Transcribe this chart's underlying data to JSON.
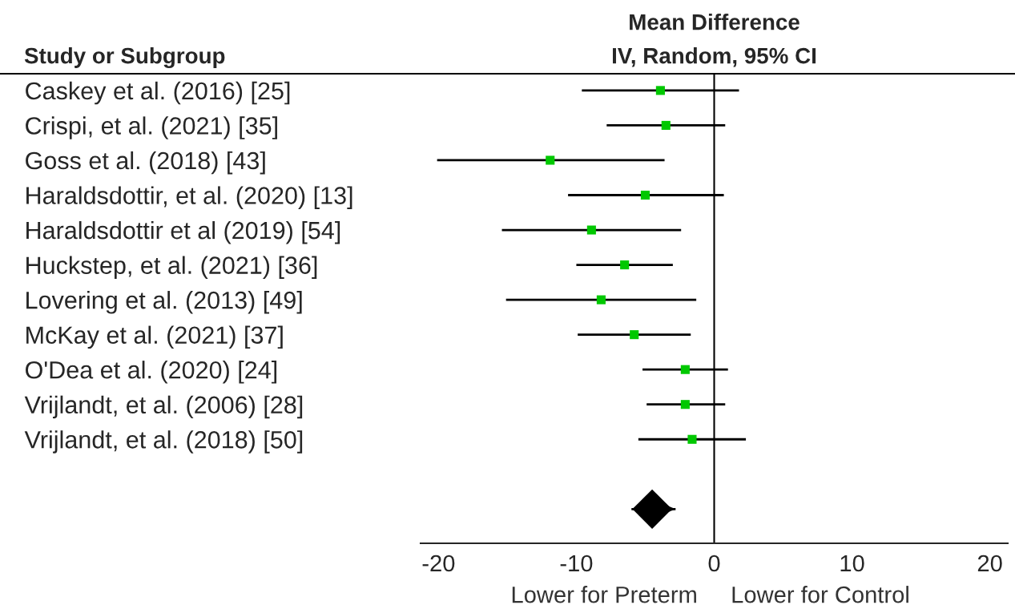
{
  "chart_data": {
    "type": "scatter",
    "orientation": "horizontal",
    "title": "Mean Difference",
    "subtitle": "IV, Random, 95% CI",
    "ylabel": "Study or Subgroup",
    "categories": [
      "Caskey et al. (2016) [25]",
      "Crispi, et al. (2021) [35]",
      "Goss et al. (2018) [43]",
      "Haraldsdottir, et al. (2020) [13]",
      "Haraldsdottir et al (2019) [54]",
      "Huckstep, et al. (2021) [36]",
      "Lovering et al. (2013) [49]",
      "McKay et al. (2021) [37]",
      "O'Dea et al. (2020) [24]",
      "Vrijlandt, et al. (2006) [28]",
      "Vrijlandt, et al. (2018) [50]",
      null,
      null
    ],
    "series": [
      {
        "color": "#00c800",
        "marker": "square",
        "values": [
          -3.9,
          -3.5,
          -11.9,
          -5.0,
          -8.9,
          -6.5,
          -8.2,
          -5.8,
          -2.1,
          -2.1,
          -1.6,
          null,
          null
        ],
        "errors": [
          [
            -9.6,
            1.8
          ],
          [
            -7.8,
            0.8
          ],
          [
            -20.1,
            -3.6
          ],
          [
            -10.6,
            0.7
          ],
          [
            -15.4,
            -2.4
          ],
          [
            -10.0,
            -3.0
          ],
          [
            -15.1,
            -1.3
          ],
          [
            -9.9,
            -1.7
          ],
          [
            -5.2,
            1.0
          ],
          [
            -4.9,
            0.8
          ],
          [
            -5.5,
            2.3
          ],
          null,
          null
        ]
      },
      {
        "color": "#000000",
        "marker": "diamond",
        "values": [
          null,
          null,
          null,
          null,
          null,
          null,
          null,
          null,
          null,
          null,
          null,
          null,
          -4.5
        ],
        "errors": [
          null,
          null,
          null,
          null,
          null,
          null,
          null,
          null,
          null,
          null,
          null,
          null,
          [
            -6.0,
            -2.8
          ]
        ]
      }
    ],
    "xlim": [
      -21.3,
      21.3
    ],
    "xticks": [
      -20,
      -10,
      0,
      10,
      20
    ],
    "ref_lines": [
      {
        "axis": "x",
        "value": 0,
        "color": "#000000"
      }
    ],
    "annotations": [
      "Lower for Preterm",
      "Lower for Control"
    ]
  }
}
